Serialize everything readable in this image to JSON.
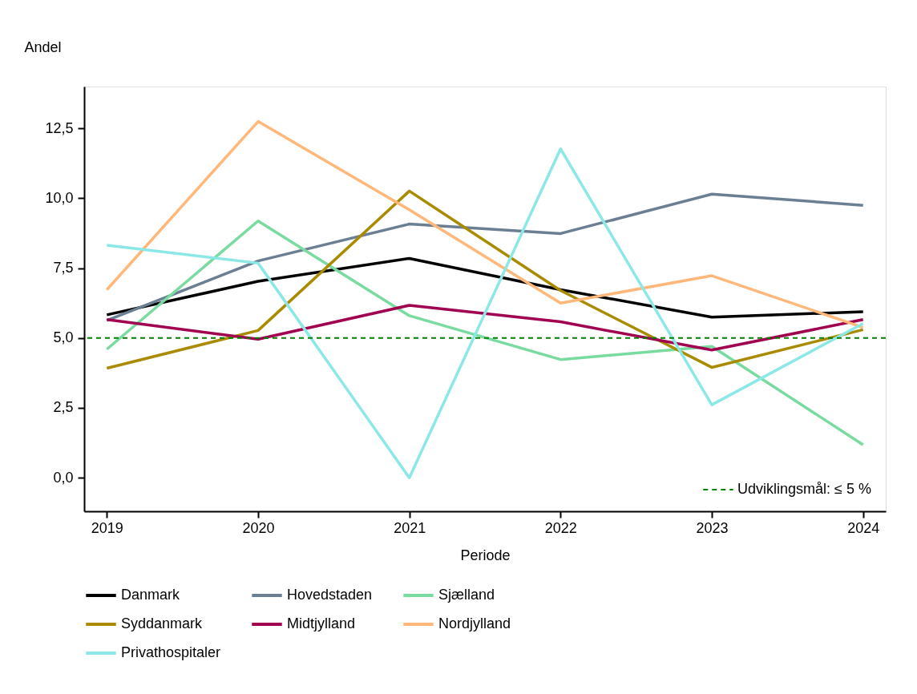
{
  "chart_data": {
    "type": "line",
    "xlabel": "Periode",
    "ylabel": "Andel",
    "x": [
      2019,
      2020,
      2021,
      2022,
      2023,
      2024
    ],
    "xlim": [
      2018.85,
      2024.15
    ],
    "xticks": [
      2019,
      2020,
      2021,
      2022,
      2023,
      2024
    ],
    "ylim": [
      -1.2,
      14
    ],
    "yticks": [
      {
        "value": 0,
        "label": "0,0"
      },
      {
        "value": 2.5,
        "label": "2,5"
      },
      {
        "value": 5,
        "label": "5,0"
      },
      {
        "value": 7.5,
        "label": "7,5"
      },
      {
        "value": 10,
        "label": "10,0"
      },
      {
        "value": 12.5,
        "label": "12,5"
      }
    ],
    "grid": false,
    "legend": "bottom",
    "marker": "none",
    "line_style": "solid",
    "series": [
      {
        "name": "Danmark",
        "color": "#000000",
        "values": [
          5.83,
          7.03,
          7.85,
          6.73,
          5.75,
          5.94
        ]
      },
      {
        "name": "Hovedstaden",
        "color": "#6b7f93",
        "values": [
          5.63,
          7.76,
          9.08,
          8.74,
          10.15,
          9.75
        ]
      },
      {
        "name": "Sjælland",
        "color": "#79dba0",
        "values": [
          4.6,
          9.19,
          5.8,
          4.23,
          4.7,
          1.18
        ]
      },
      {
        "name": "Syddanmark",
        "color": "#a98b00",
        "values": [
          3.92,
          5.27,
          10.26,
          6.7,
          3.95,
          5.3
        ]
      },
      {
        "name": "Midtjylland",
        "color": "#a0004f",
        "values": [
          5.66,
          4.96,
          6.17,
          5.58,
          4.57,
          5.66
        ]
      },
      {
        "name": "Nordjylland",
        "color": "#ffb77a",
        "values": [
          6.73,
          12.75,
          9.59,
          6.25,
          7.23,
          5.38
        ]
      },
      {
        "name": "Privathospitaler",
        "color": "#8ce8e6",
        "values": [
          8.32,
          7.68,
          0.0,
          11.77,
          2.61,
          5.52
        ]
      }
    ],
    "ref_lines": [
      {
        "axis": "y",
        "value": 5,
        "label": "Udviklingsmål: ≤ 5 %",
        "color": "#008000",
        "line_style": "dashed"
      }
    ]
  }
}
